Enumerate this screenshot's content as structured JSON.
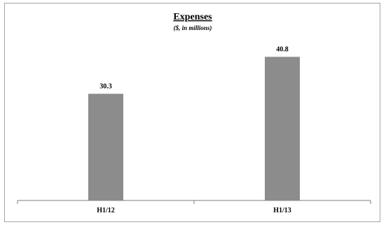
{
  "chart_data": {
    "type": "bar",
    "title": "Expenses",
    "subtitle": "($, in millions)",
    "categories": [
      "H1/12",
      "H1/13"
    ],
    "values": [
      30.3,
      40.8
    ],
    "value_labels": [
      "30.3",
      "40.8"
    ],
    "xlabel": "",
    "ylabel": "",
    "ylim": [
      0,
      50
    ],
    "grid": false,
    "legend": "none",
    "bar_color": "#8c8c8c"
  }
}
